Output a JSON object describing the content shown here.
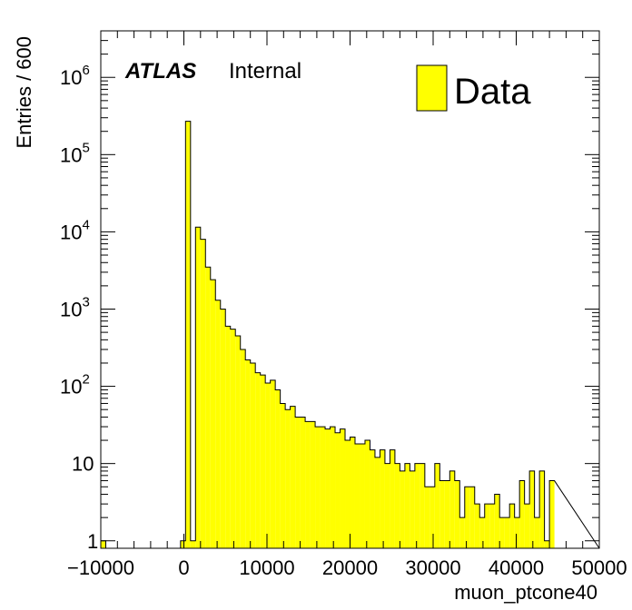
{
  "chart_data": {
    "type": "bar",
    "histogram": true,
    "xlabel": "muon_ptcone40",
    "ylabel": "Entries / 600",
    "xlim": [
      -10000,
      50000
    ],
    "ylim": [
      0.8,
      4000000
    ],
    "ylog": true,
    "x_ticks": [
      {
        "value": -10000,
        "label": "−10000"
      },
      {
        "value": 0,
        "label": "0"
      },
      {
        "value": 10000,
        "label": "10000"
      },
      {
        "value": 20000,
        "label": "20000"
      },
      {
        "value": 30000,
        "label": "30000"
      },
      {
        "value": 40000,
        "label": "40000"
      },
      {
        "value": 50000,
        "label": "50000"
      }
    ],
    "y_ticks": [
      {
        "value": 1,
        "base": "1",
        "exp": ""
      },
      {
        "value": 10,
        "base": "10",
        "exp": ""
      },
      {
        "value": 100,
        "base": "10",
        "exp": "2"
      },
      {
        "value": 1000,
        "base": "10",
        "exp": "3"
      },
      {
        "value": 10000,
        "base": "10",
        "exp": "4"
      },
      {
        "value": 100000,
        "base": "10",
        "exp": "5"
      },
      {
        "value": 1000000,
        "base": "10",
        "exp": "6"
      }
    ],
    "bin_width": 600,
    "bin_start": -10000,
    "values": [
      1,
      0,
      0,
      0,
      0,
      0,
      0,
      0,
      0,
      0,
      0,
      0,
      0,
      0,
      0,
      0,
      1,
      270000,
      1,
      11500,
      8000,
      3500,
      2400,
      1300,
      1000,
      600,
      550,
      450,
      300,
      220,
      200,
      150,
      140,
      110,
      120,
      90,
      60,
      50,
      55,
      40,
      40,
      35,
      35,
      30,
      30,
      28,
      30,
      25,
      28,
      20,
      22,
      18,
      18,
      20,
      15,
      12,
      15,
      10,
      15,
      10,
      8,
      10,
      8,
      10,
      10,
      5,
      5,
      10,
      6,
      6,
      8,
      6,
      2,
      5,
      5,
      3,
      2,
      3,
      3,
      4,
      2,
      2,
      3,
      2,
      6,
      3,
      8,
      2,
      8,
      1,
      6
    ],
    "fill_color": "#ffff00",
    "line_color": "#000000",
    "legend": [
      {
        "label": "Data",
        "color": "#ffff00"
      }
    ],
    "legend_position": "top-right",
    "annotation": {
      "bold": "ATLAS",
      "text": "Internal"
    }
  }
}
